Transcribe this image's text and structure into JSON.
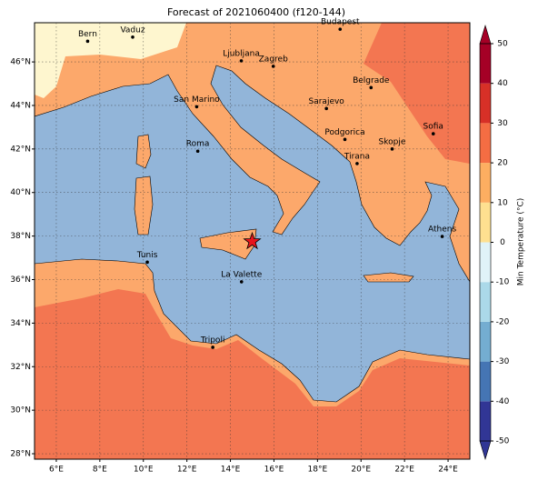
{
  "title": "Forecast of 2021060400 (f120-144)",
  "map": {
    "xlim": [
      5,
      25
    ],
    "ylim": [
      27.75,
      47.8
    ],
    "grid": true,
    "xticks": [
      {
        "value": 6,
        "label": "6°E"
      },
      {
        "value": 8,
        "label": "8°E"
      },
      {
        "value": 10,
        "label": "10°E"
      },
      {
        "value": 12,
        "label": "12°E"
      },
      {
        "value": 14,
        "label": "14°E"
      },
      {
        "value": 16,
        "label": "16°E"
      },
      {
        "value": 18,
        "label": "18°E"
      },
      {
        "value": 20,
        "label": "20°E"
      },
      {
        "value": 22,
        "label": "22°E"
      },
      {
        "value": 24,
        "label": "24°E"
      }
    ],
    "yticks": [
      {
        "value": 28,
        "label": "28°N"
      },
      {
        "value": 30,
        "label": "30°N"
      },
      {
        "value": 32,
        "label": "32°N"
      },
      {
        "value": 34,
        "label": "34°N"
      },
      {
        "value": 36,
        "label": "36°N"
      },
      {
        "value": 38,
        "label": "38°N"
      },
      {
        "value": 40,
        "label": "40°N"
      },
      {
        "value": 42,
        "label": "42°N"
      },
      {
        "value": 44,
        "label": "44°N"
      },
      {
        "value": 46,
        "label": "46°N"
      }
    ],
    "cities": [
      {
        "name": "Bern",
        "lon": 7.44,
        "lat": 46.95
      },
      {
        "name": "Vaduz",
        "lon": 9.51,
        "lat": 47.14
      },
      {
        "name": "Budapest",
        "lon": 19.04,
        "lat": 47.5
      },
      {
        "name": "Ljubljana",
        "lon": 14.5,
        "lat": 46.05
      },
      {
        "name": "Zagreb",
        "lon": 15.97,
        "lat": 45.8
      },
      {
        "name": "Belgrade",
        "lon": 20.46,
        "lat": 44.82
      },
      {
        "name": "San Marino",
        "lon": 12.45,
        "lat": 43.94
      },
      {
        "name": "Sarajevo",
        "lon": 18.41,
        "lat": 43.86
      },
      {
        "name": "Sofia",
        "lon": 23.32,
        "lat": 42.7
      },
      {
        "name": "Roma",
        "lon": 12.5,
        "lat": 41.9
      },
      {
        "name": "Podgorica",
        "lon": 19.26,
        "lat": 42.44
      },
      {
        "name": "Skopje",
        "lon": 21.43,
        "lat": 42.0
      },
      {
        "name": "Tirana",
        "lon": 19.82,
        "lat": 41.33
      },
      {
        "name": "Athens",
        "lon": 23.73,
        "lat": 37.98
      },
      {
        "name": "Tunis",
        "lon": 10.18,
        "lat": 36.8
      },
      {
        "name": "La Valette",
        "lon": 14.51,
        "lat": 35.9
      },
      {
        "name": "Tripoli",
        "lon": 13.19,
        "lat": 32.89
      }
    ],
    "event": {
      "lon": 15.0,
      "lat": 37.75,
      "color": "#e8141c"
    }
  },
  "colorbar": {
    "label": "Min Temperature (°C)",
    "lim": [
      -50,
      50
    ],
    "ticks": [
      -50,
      -40,
      -30,
      -20,
      -10,
      0,
      10,
      20,
      30,
      40,
      50
    ],
    "colors": [
      "#313695",
      "#4575b4",
      "#74add1",
      "#abd9e9",
      "#e0f3f8",
      "#fee090",
      "#fdae61",
      "#f46d43",
      "#d73027",
      "#a50026"
    ]
  }
}
